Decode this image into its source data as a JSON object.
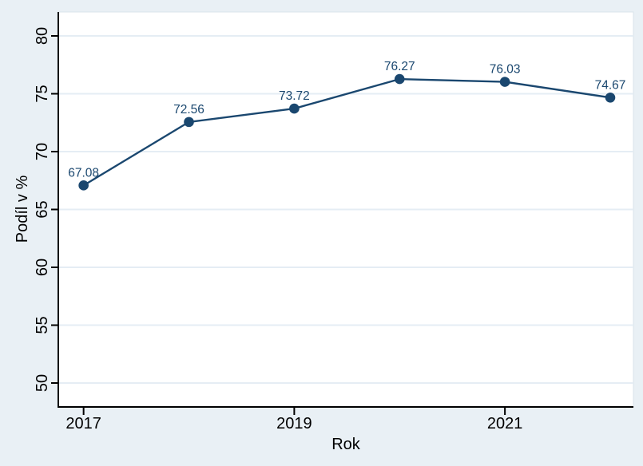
{
  "chart_data": {
    "type": "line",
    "title": "",
    "xlabel": "Rok",
    "ylabel": "Podíl v %",
    "x": [
      2017,
      2018,
      2019,
      2020,
      2021,
      2022
    ],
    "series": [
      {
        "name": "Podíl v %",
        "values": [
          67.08,
          72.56,
          73.72,
          76.27,
          76.03,
          74.67
        ]
      }
    ],
    "point_labels": [
      "67.08",
      "72.56",
      "73.72",
      "76.27",
      "76.03",
      "74.67"
    ],
    "x_ticks": [
      2017,
      2019,
      2021
    ],
    "y_ticks": [
      50,
      55,
      60,
      65,
      70,
      75,
      80
    ],
    "xlim": [
      2016.76,
      2022.22
    ],
    "ylim": [
      47.93,
      82.07
    ],
    "grid": "horizontal-only",
    "legend": "none",
    "y_tick_label_angle": 90,
    "marker": "filled-circle",
    "colors": {
      "line": "#1a476f",
      "marker": "#1a476f",
      "point_label": "#1a476f",
      "grid": "#e5edf4",
      "axis": "#000000",
      "tick_text": "#000000",
      "background": "#e9f0f5",
      "plot_background": "#ffffff",
      "plot_border": "#d9e3ea"
    }
  }
}
